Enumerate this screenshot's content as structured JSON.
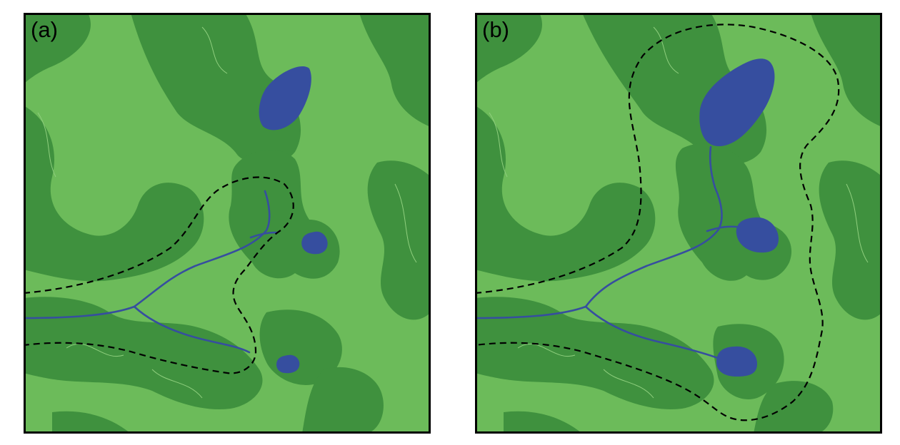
{
  "figure": {
    "panels": [
      {
        "id": "a",
        "label": "(a)"
      },
      {
        "id": "b",
        "label": "(b)"
      }
    ]
  },
  "colors": {
    "land_light": "#6cbb5a",
    "land_dark": "#3f913e",
    "water": "#364e9f",
    "river": "#364e9f",
    "boundary": "#000000",
    "frame": "#000000"
  }
}
